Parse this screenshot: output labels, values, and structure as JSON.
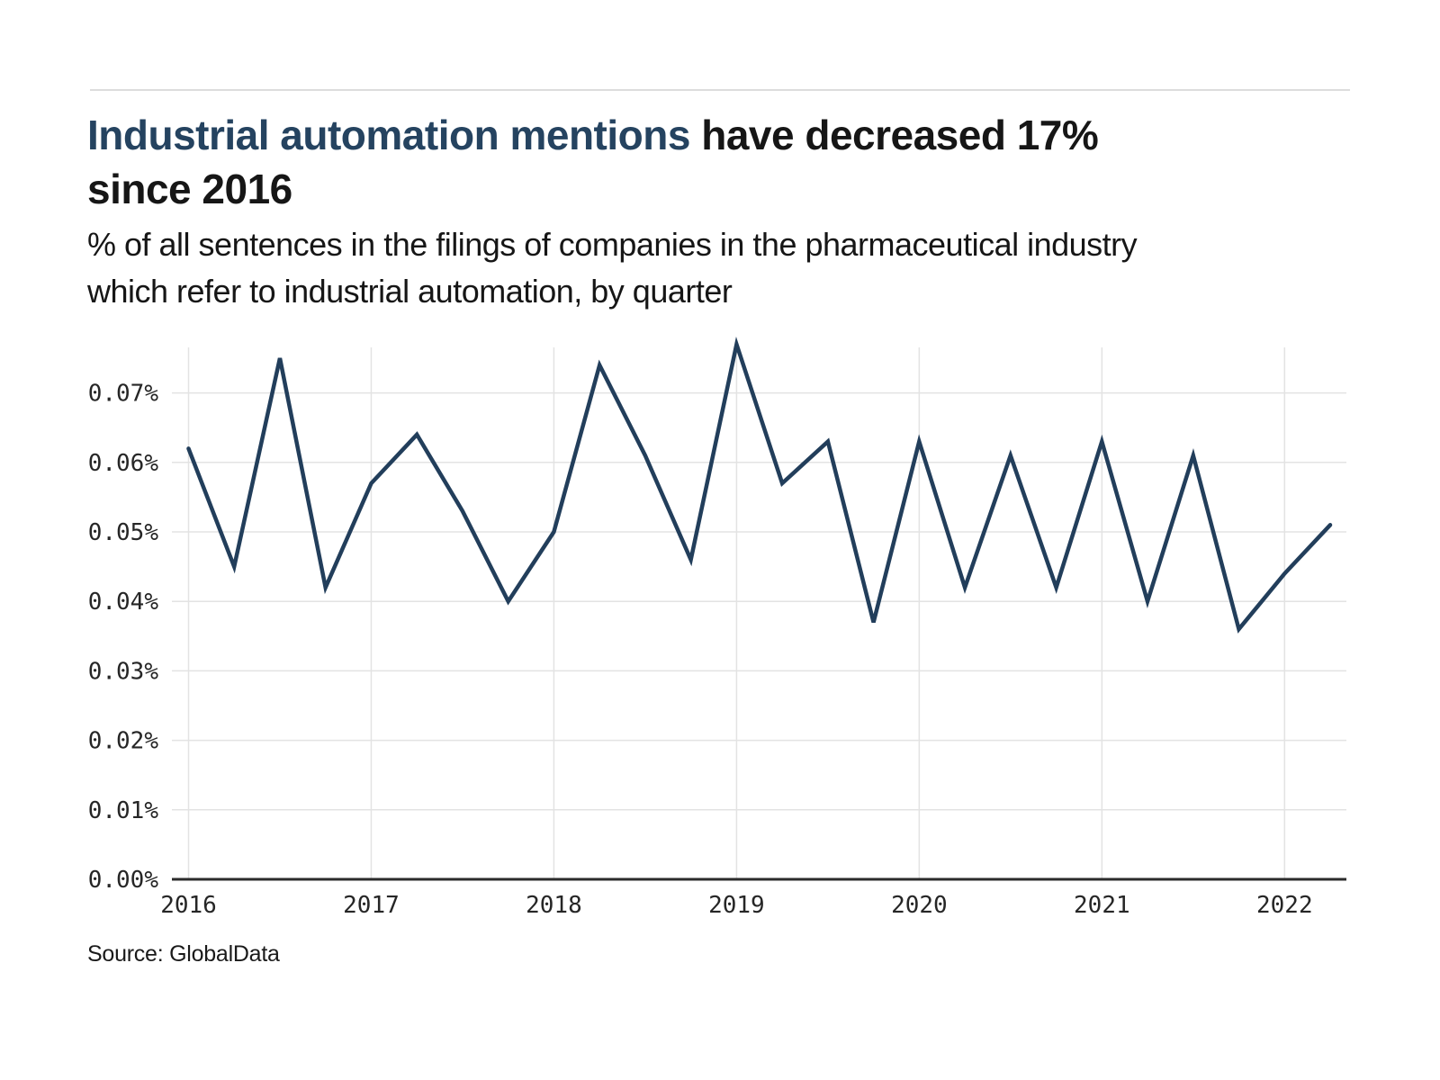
{
  "header": {
    "title_highlight": "Industrial automation mentions",
    "title_rest": " have decreased 17%",
    "title_line2": "since 2016",
    "subtitle_line1": "% of all sentences in the filings of companies in the pharmaceutical industry",
    "subtitle_line2": "which refer to industrial automation, by quarter"
  },
  "source_note": "Source: GlobalData",
  "colors": {
    "accent_navy": "#254360",
    "line": "#223e5b",
    "text": "#161616",
    "tick_label": "#262626",
    "gridline": "#e3e3e3",
    "axis_line": "#2b2b2b",
    "divider": "#dcdcdc",
    "background": "#ffffff"
  },
  "chart_data": {
    "type": "line",
    "title": "Industrial automation mentions have decreased 17% since 2016",
    "subtitle": "% of all sentences in the filings of companies in the pharmaceutical industry which refer to industrial automation, by quarter",
    "unit": "%",
    "xlabel": "",
    "ylabel": "",
    "grid": true,
    "legend": false,
    "ylim": [
      0,
      0.0782
    ],
    "y_tick_labels": [
      "0.00%",
      "0.01%",
      "0.02%",
      "0.03%",
      "0.04%",
      "0.05%",
      "0.06%",
      "0.07%"
    ],
    "x_tick_labels": [
      "2016",
      "2017",
      "2018",
      "2019",
      "2020",
      "2021",
      "2022"
    ],
    "x": [
      "2016 Q1",
      "2016 Q2",
      "2016 Q3",
      "2016 Q4",
      "2017 Q1",
      "2017 Q2",
      "2017 Q3",
      "2017 Q4",
      "2018 Q1",
      "2018 Q2",
      "2018 Q3",
      "2018 Q4",
      "2019 Q1",
      "2019 Q2",
      "2019 Q3",
      "2019 Q4",
      "2020 Q1",
      "2020 Q2",
      "2020 Q3",
      "2020 Q4",
      "2021 Q1",
      "2021 Q2",
      "2021 Q3",
      "2021 Q4",
      "2022 Q1",
      "2022 Q2"
    ],
    "series": [
      {
        "name": "Industrial automation mentions (% of sentences)",
        "values": [
          0.062,
          0.045,
          0.075,
          0.042,
          0.057,
          0.064,
          0.053,
          0.04,
          0.05,
          0.074,
          0.061,
          0.046,
          0.077,
          0.057,
          0.063,
          0.037,
          0.063,
          0.042,
          0.061,
          0.042,
          0.063,
          0.04,
          0.061,
          0.036,
          0.044,
          0.051
        ]
      }
    ]
  }
}
